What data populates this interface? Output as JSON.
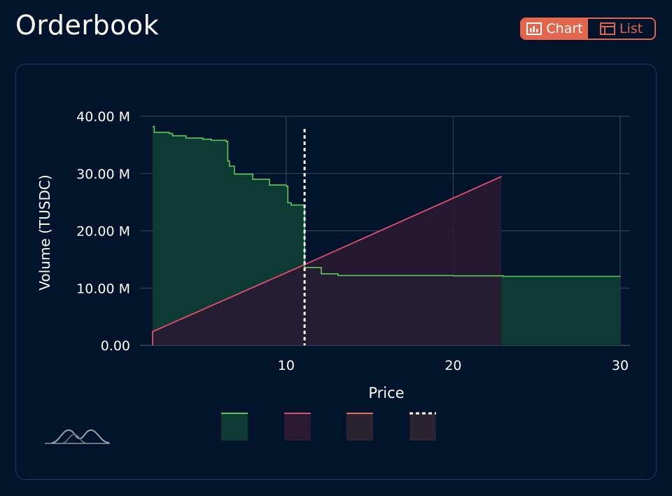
{
  "page": {
    "title": "Orderbook"
  },
  "view_toggle": {
    "chart_label": "Chart",
    "list_label": "List",
    "selected": "Chart",
    "chart_icon": "bar-chart-icon",
    "list_icon": "table-icon",
    "accent_color": "#e2664b"
  },
  "chart_data": {
    "type": "area",
    "xlabel": "Price",
    "ylabel": "Volume (TUSDC)",
    "xlim": [
      2,
      30
    ],
    "ylim": [
      0,
      40000000
    ],
    "x_ticks": [
      10,
      20,
      30
    ],
    "x_tick_labels": [
      "10",
      "20",
      "30"
    ],
    "y_ticks": [
      0,
      10000000,
      20000000,
      30000000,
      40000000
    ],
    "y_tick_labels": [
      "0.00",
      "10.00 M",
      "20.00 M",
      "30.00 M",
      "40.00 M"
    ],
    "grid": true,
    "series": [
      {
        "color": "#5fc65c",
        "fill": "#0d3a32",
        "kind": "step",
        "points": [
          [
            2.0,
            38.2
          ],
          [
            2.1,
            37.2
          ],
          [
            3.0,
            37.0
          ],
          [
            3.2,
            36.6
          ],
          [
            4.0,
            36.2
          ],
          [
            5.0,
            36.0
          ],
          [
            5.5,
            35.8
          ],
          [
            6.4,
            35.6
          ],
          [
            6.5,
            32.2
          ],
          [
            6.6,
            31.3
          ],
          [
            6.9,
            29.9
          ],
          [
            8.0,
            29.0
          ],
          [
            9.0,
            28.0
          ],
          [
            10.0,
            27.8
          ],
          [
            10.1,
            24.9
          ],
          [
            10.3,
            24.5
          ],
          [
            11.1,
            13.6
          ],
          [
            12.1,
            12.5
          ],
          [
            13.1,
            12.2
          ],
          [
            20.0,
            12.15
          ],
          [
            23.0,
            12.05
          ],
          [
            30.0,
            12.0
          ]
        ]
      },
      {
        "color": "#e0506e",
        "fill": "#2a1a33",
        "kind": "line",
        "points": [
          [
            2.0,
            0
          ],
          [
            2.0,
            2.4
          ],
          [
            11.1,
            14.1
          ],
          [
            22.9,
            29.5
          ],
          [
            22.9,
            0
          ]
        ]
      },
      {
        "color": "#ffffff",
        "kind": "vline",
        "x": 11.1,
        "y_top": 37.8
      }
    ],
    "legend": [
      {
        "color": "#5fc65c",
        "fill": "#0d3a32",
        "style": "solid"
      },
      {
        "color": "#e0506e",
        "fill": "#2a1a33",
        "style": "solid"
      },
      {
        "color": "#e87060",
        "fill": "#2b2330",
        "style": "solid"
      },
      {
        "color": "#ffffff",
        "fill": "#2b2330",
        "style": "dashed"
      }
    ]
  },
  "branding": {
    "logo_icon": "waveform-logo-icon"
  }
}
